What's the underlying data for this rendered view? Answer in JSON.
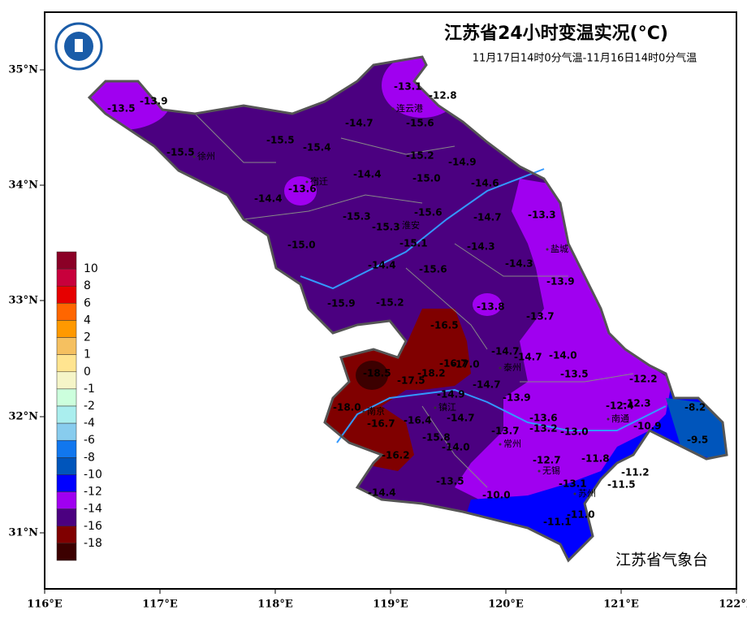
{
  "title": "江苏省24小时变温实况(°C)",
  "subtitle": "11月17日14时0分气温-11月16日14时0分气温",
  "agency": "江苏省气象台",
  "lat_labels": [
    "35°N",
    "34°N",
    "33°N",
    "32°N",
    "31°N"
  ],
  "lon_labels": [
    "116°E",
    "117°E",
    "118°E",
    "119°E",
    "120°E",
    "121°E",
    "122°E"
  ],
  "legend": {
    "labels": [
      "10",
      "8",
      "6",
      "4",
      "2",
      "1",
      "0",
      "-1",
      "-2",
      "-4",
      "-6",
      "-8",
      "-10",
      "-12",
      "-14",
      "-16",
      "-18"
    ],
    "colors": [
      "#8b0026",
      "#c8003c",
      "#e60000",
      "#ff6600",
      "#ff9900",
      "#f5c060",
      "#ffe490",
      "#f5f5c8",
      "#ccffdd",
      "#aaeeee",
      "#88ccee",
      "#1177ee",
      "#0055bb",
      "#0000ff",
      "#a000f0",
      "#4b0080",
      "#800000",
      "#3c0000"
    ]
  },
  "cities": [
    "连云港",
    "徐州",
    "宿迁",
    "淮安",
    "盐城",
    "泰州",
    "南京",
    "镇江",
    "南通",
    "常州",
    "无锡",
    "苏州"
  ],
  "stations": [
    "-13.1",
    "-12.8",
    "-13.5",
    "-13.9",
    "-14.7",
    "-15.6",
    "-15.5",
    "-15.4",
    "-15.5",
    "-15.2",
    "-14.9",
    "-14.4",
    "-15.0",
    "-14.6",
    "-13.6",
    "-14.4",
    "-15.6",
    "-15.3",
    "-15.3",
    "-14.7",
    "-13.3",
    "-15.1",
    "-15.0",
    "-14.3",
    "-14.4",
    "-15.6",
    "-14.3",
    "-13.9",
    "-15.9",
    "-15.2",
    "-13.8",
    "-13.7",
    "-16.5",
    "-14.7",
    "-14.7",
    "-14.0",
    "-16.7",
    "-17.0",
    "-18.2",
    "-18.5",
    "-17.5",
    "-14.7",
    "-13.5",
    "-12.2",
    "-18.0",
    "-14.9",
    "-13.9",
    "-12.4",
    "-12.3",
    "-8.2",
    "-16.7",
    "-16.4",
    "-14.7",
    "-13.6",
    "-13.7",
    "-13.2",
    "-13.0",
    "-10.9",
    "-15.8",
    "-14.0",
    "-9.5",
    "-16.2",
    "-12.7",
    "-11.8",
    "-13.5",
    "-13.1",
    "-11.2",
    "-11.5",
    "-14.4",
    "-10.0",
    "-11.0",
    "-11.1"
  ]
}
